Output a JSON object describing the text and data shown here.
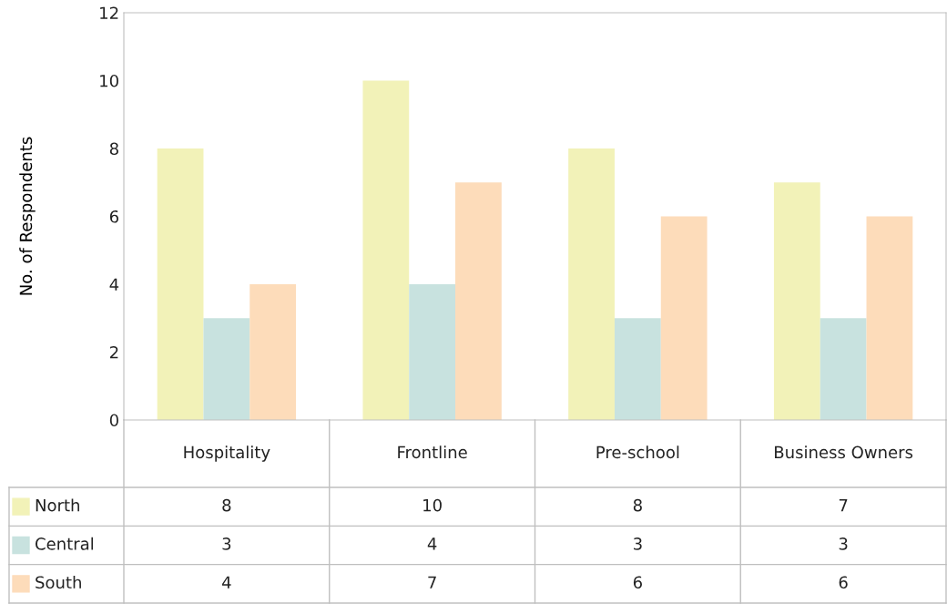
{
  "chart_data": {
    "type": "bar",
    "ylabel": "No. of Respondents",
    "categories": [
      "Hospitality",
      "Frontline",
      "Pre-school",
      "Business Owners"
    ],
    "series": [
      {
        "name": "North",
        "color": "#f2f2b8",
        "values": [
          8,
          10,
          8,
          7
        ]
      },
      {
        "name": "Central",
        "color": "#c8e2df",
        "values": [
          3,
          4,
          3,
          3
        ]
      },
      {
        "name": "South",
        "color": "#fddcba",
        "values": [
          4,
          7,
          6,
          6
        ]
      }
    ],
    "ylim": [
      0,
      12
    ],
    "yticks": [
      0,
      2,
      4,
      6,
      8,
      10,
      12
    ],
    "grid": false,
    "legend": "bottom",
    "data_labels": true
  }
}
